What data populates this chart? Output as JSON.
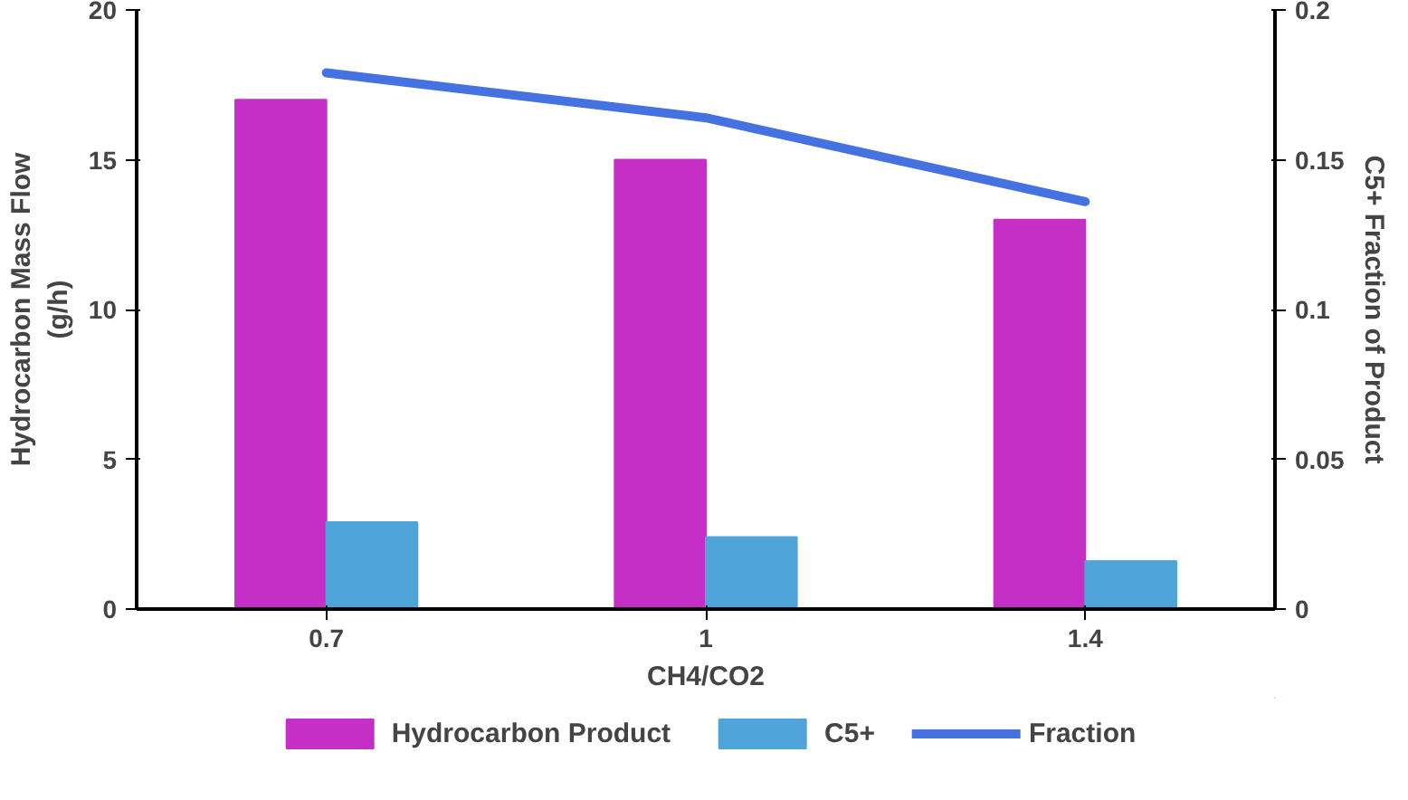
{
  "chart_data": {
    "type": "bar",
    "xlabel": "CH4/CO2",
    "ylabel": "Hydrocarbon Mass Flow\n(g/h)",
    "y2label": "C5+ Fraction of Product",
    "categories": [
      "0.7",
      "1",
      "1.4"
    ],
    "series": [
      {
        "name": "Hydrocarbon Product",
        "color": "#c62fc6",
        "values": [
          17.0,
          15.0,
          13.0
        ]
      },
      {
        "name": "C5+",
        "color": "#4fa5d9",
        "values": [
          2.9,
          2.4,
          1.6
        ]
      },
      {
        "name": "Fraction",
        "type": "line",
        "axis": "y2",
        "color": "#4472e0",
        "values": [
          0.179,
          0.164,
          0.136
        ]
      }
    ],
    "ylim": [
      0,
      20
    ],
    "yticks": [
      0,
      5,
      10,
      15,
      20
    ],
    "y2lim": [
      0,
      0.2
    ],
    "y2ticks": [
      0,
      0.05,
      0.1,
      0.15,
      0.2
    ],
    "grid": false,
    "legend": "bottom",
    "marker": "none",
    "line_style": "solid"
  }
}
